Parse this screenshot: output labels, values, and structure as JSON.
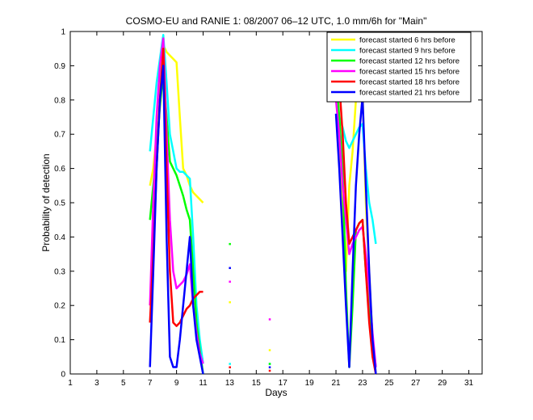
{
  "chart_data": {
    "type": "line",
    "title": "COSMO-EU and RANIE 1: 08/2007 06–12 UTC, 1.0 mm/6h for \"Main\"",
    "xlabel": "Days",
    "ylabel": "Probability of detection",
    "xlim": [
      1,
      32
    ],
    "ylim": [
      0,
      1
    ],
    "xticks": [
      "1",
      "3",
      "5",
      "7",
      "9",
      "11",
      "13",
      "15",
      "17",
      "19",
      "21",
      "23",
      "25",
      "27",
      "29",
      "31"
    ],
    "yticks": [
      "0",
      "0.1",
      "0.2",
      "0.3",
      "0.4",
      "0.5",
      "0.6",
      "0.7",
      "0.8",
      "0.9",
      "1"
    ],
    "legend_position": "top-right",
    "series": [
      {
        "name": "forecast started 6 hrs before",
        "color": "#ffff00",
        "x": [
          7.0,
          7.25,
          7.5,
          7.75,
          8.0,
          8.25,
          8.5,
          8.75,
          9.0,
          9.25,
          9.5,
          9.75,
          10.0,
          10.25,
          10.5,
          10.75,
          11.0,
          null,
          13.0,
          null,
          16.0,
          null,
          21.0,
          21.25,
          21.5,
          21.75,
          22.0,
          22.25,
          22.5,
          22.75,
          23.0,
          23.25,
          23.5,
          23.75,
          24.0
        ],
        "y": [
          0.55,
          0.6,
          0.7,
          0.85,
          0.96,
          0.94,
          0.93,
          0.92,
          0.91,
          0.75,
          0.6,
          0.58,
          0.55,
          0.53,
          0.52,
          0.51,
          0.5,
          null,
          0.21,
          null,
          0.07,
          null,
          0.75,
          0.7,
          0.45,
          0.3,
          0.55,
          0.65,
          0.8,
          0.82,
          0.83,
          0.5,
          0.3,
          0.1,
          0.0
        ]
      },
      {
        "name": "forecast started 9 hrs before",
        "color": "#00ffff",
        "x": [
          7.0,
          7.25,
          7.5,
          7.75,
          8.0,
          8.25,
          8.5,
          8.75,
          9.0,
          9.25,
          9.5,
          9.75,
          10.0,
          10.25,
          10.5,
          10.75,
          11.0,
          null,
          13.0,
          null,
          16.0,
          null,
          21.0,
          21.25,
          21.5,
          21.75,
          22.0,
          22.25,
          22.5,
          22.75,
          23.0,
          23.25,
          23.5,
          23.75,
          24.0
        ],
        "y": [
          0.65,
          0.75,
          0.85,
          0.92,
          0.99,
          0.85,
          0.7,
          0.65,
          0.6,
          0.59,
          0.59,
          0.58,
          0.57,
          0.4,
          0.2,
          0.1,
          0.03,
          null,
          0.03,
          null,
          0.03,
          null,
          0.76,
          0.75,
          0.72,
          0.68,
          0.66,
          0.68,
          0.7,
          0.72,
          0.73,
          0.6,
          0.5,
          0.45,
          0.38
        ]
      },
      {
        "name": "forecast started 12 hrs before",
        "color": "#00ff00",
        "x": [
          7.0,
          7.25,
          7.5,
          7.75,
          8.0,
          8.25,
          8.5,
          8.75,
          9.0,
          9.25,
          9.5,
          9.75,
          10.0,
          10.25,
          10.5,
          10.75,
          11.0,
          null,
          13.0,
          null,
          16.0,
          null,
          21.0,
          21.25,
          21.5,
          21.75,
          22.0,
          22.25,
          22.5,
          22.75,
          23.0,
          23.25,
          23.5,
          23.75,
          24.0
        ],
        "y": [
          0.45,
          0.55,
          0.65,
          0.78,
          0.88,
          0.75,
          0.62,
          0.6,
          0.58,
          0.55,
          0.52,
          0.48,
          0.45,
          0.3,
          0.15,
          0.07,
          0.0,
          null,
          0.38,
          null,
          0.03,
          null,
          0.88,
          0.75,
          0.6,
          0.25,
          0.02,
          0.2,
          0.42,
          0.44,
          0.45,
          0.3,
          0.2,
          0.1,
          0.02
        ]
      },
      {
        "name": "forecast started 15 hrs before",
        "color": "#ff00ff",
        "x": [
          7.0,
          7.25,
          7.5,
          7.75,
          8.0,
          8.25,
          8.5,
          8.75,
          9.0,
          9.25,
          9.5,
          9.75,
          10.0,
          10.25,
          10.5,
          10.75,
          11.0,
          null,
          13.0,
          null,
          16.0,
          null,
          21.0,
          21.25,
          21.5,
          21.75,
          22.0,
          22.25,
          22.5,
          22.75,
          23.0,
          23.25,
          23.5,
          23.75,
          24.0
        ],
        "y": [
          0.2,
          0.5,
          0.75,
          0.9,
          0.98,
          0.7,
          0.45,
          0.3,
          0.25,
          0.26,
          0.27,
          0.29,
          0.32,
          0.2,
          0.12,
          0.06,
          0.03,
          null,
          0.27,
          null,
          0.16,
          null,
          0.8,
          0.7,
          0.55,
          0.45,
          0.35,
          0.38,
          0.4,
          0.42,
          0.43,
          0.35,
          0.25,
          0.12,
          0.02
        ]
      },
      {
        "name": "forecast started 18 hrs before",
        "color": "#ff0000",
        "x": [
          7.0,
          7.25,
          7.5,
          7.75,
          8.0,
          8.25,
          8.5,
          8.75,
          9.0,
          9.25,
          9.5,
          9.75,
          10.0,
          10.25,
          10.5,
          10.75,
          11.0,
          null,
          13.0,
          null,
          16.0,
          null,
          21.0,
          21.25,
          21.5,
          21.75,
          22.0,
          22.25,
          22.5,
          22.75,
          23.0,
          23.25,
          23.5,
          23.75,
          24.0
        ],
        "y": [
          0.15,
          0.35,
          0.6,
          0.8,
          0.95,
          0.6,
          0.3,
          0.15,
          0.14,
          0.15,
          0.17,
          0.19,
          0.2,
          0.22,
          0.23,
          0.24,
          0.24,
          null,
          0.02,
          null,
          0.01,
          null,
          0.95,
          0.85,
          0.7,
          0.5,
          0.38,
          0.4,
          0.42,
          0.44,
          0.45,
          0.3,
          0.15,
          0.05,
          0.0
        ]
      },
      {
        "name": "forecast started 21 hrs before",
        "color": "#0000ff",
        "x": [
          7.0,
          7.25,
          7.5,
          7.75,
          8.0,
          8.25,
          8.5,
          8.75,
          9.0,
          9.25,
          9.5,
          9.75,
          10.0,
          10.25,
          10.5,
          10.75,
          11.0,
          null,
          13.0,
          null,
          16.0,
          null,
          21.0,
          21.25,
          21.5,
          21.75,
          22.0,
          22.25,
          22.5,
          22.75,
          23.0,
          23.25,
          23.5,
          23.75,
          24.0
        ],
        "y": [
          0.02,
          0.3,
          0.6,
          0.8,
          0.9,
          0.4,
          0.05,
          0.02,
          0.02,
          0.1,
          0.2,
          0.3,
          0.4,
          0.2,
          0.1,
          0.05,
          0.0,
          null,
          0.31,
          null,
          0.02,
          null,
          0.76,
          0.6,
          0.4,
          0.2,
          0.02,
          0.3,
          0.55,
          0.7,
          0.81,
          0.55,
          0.3,
          0.1,
          0.0
        ]
      }
    ]
  }
}
